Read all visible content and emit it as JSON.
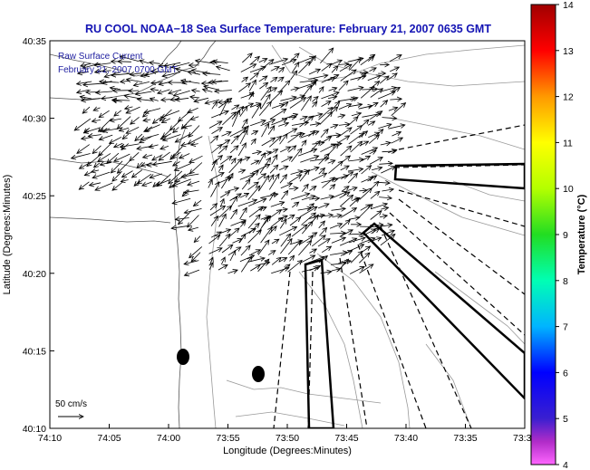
{
  "title": "RU COOL  NOAA−18  Sea Surface Temperature:  February 21, 2007 0635 GMT",
  "map": {
    "xlabel": "Longitude (Degrees:Minutes)",
    "ylabel": "Latitude (Degrees:Minutes)",
    "xticks": [
      "74:10",
      "74:05",
      "74:00",
      "73:55",
      "73:50",
      "73:45",
      "73:40",
      "73:35",
      "73:3"
    ],
    "yticks": [
      "40:35",
      "40:30",
      "40:25",
      "40:20",
      "40:15",
      "40:10"
    ],
    "legend_line1": "Raw Surface Current",
    "legend_line2": "February 21, 2007 0700 GMT",
    "scale_label": "50 cm/s",
    "colors": {
      "title": "#1414b4",
      "legend_text": "#1e1ea0",
      "axis": "#000000",
      "contour": "#999999"
    }
  },
  "colorbar": {
    "label": "Temperature (°C)",
    "ticks": [
      "14",
      "13",
      "12",
      "11",
      "10",
      "9",
      "8",
      "7",
      "6",
      "5",
      "4"
    ],
    "range": [
      4,
      14
    ]
  }
}
